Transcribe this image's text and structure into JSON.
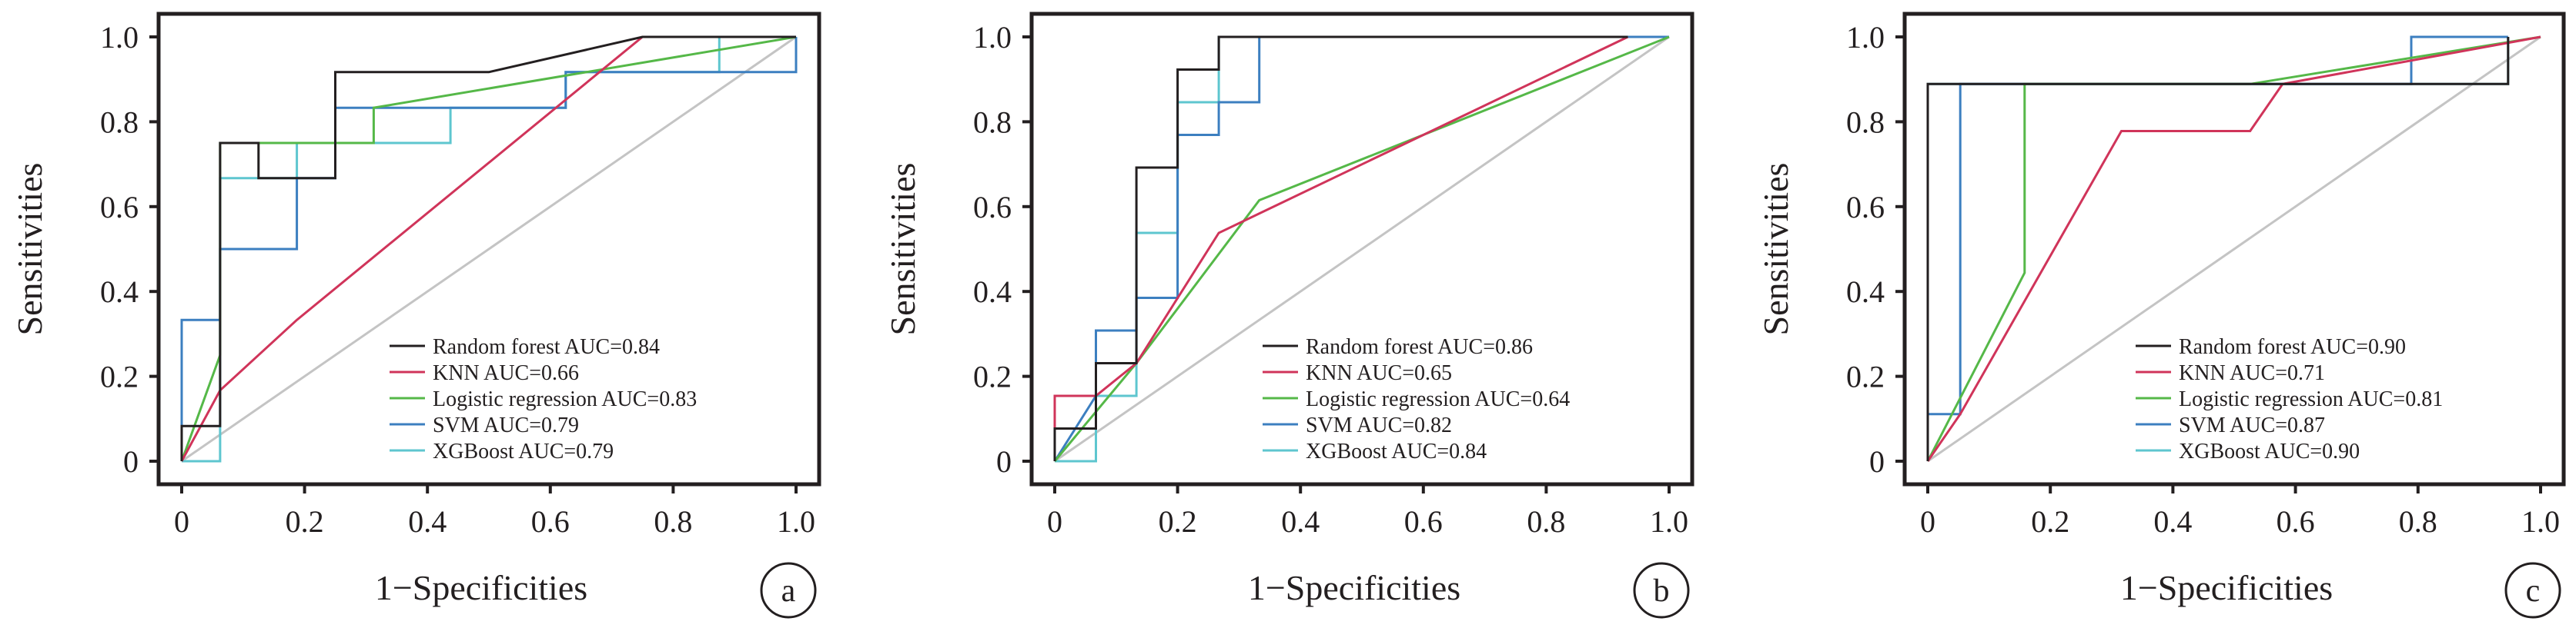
{
  "chart_data": [
    {
      "type": "line",
      "panel_label": "a",
      "xlabel": "1−Specificities",
      "ylabel": "Sensitivities",
      "xlim": [
        0,
        1
      ],
      "ylim": [
        0,
        1
      ],
      "x_ticks": [
        "0",
        "0.2",
        "0.4",
        "0.6",
        "0.8",
        "1.0"
      ],
      "y_ticks": [
        "0",
        "0.2",
        "0.4",
        "0.6",
        "0.8",
        "1.0"
      ],
      "diagonal_reference": true,
      "legend_position": "bottom-right",
      "grid": false,
      "series": [
        {
          "name": "Random forest AUC=0.84",
          "color": "#231f20",
          "x": [
            0,
            0,
            0.0625,
            0.0625,
            0.125,
            0.125,
            0.25,
            0.25,
            0.5,
            0.5,
            0.75,
            0.875,
            1.0
          ],
          "y": [
            0,
            0.083,
            0.083,
            0.75,
            0.75,
            0.667,
            0.667,
            0.917,
            0.917,
            0.917,
            1.0,
            1.0,
            1.0
          ]
        },
        {
          "name": "KNN AUC=0.66",
          "color": "#d0345a",
          "x": [
            0,
            0.0625,
            0.1875,
            0.75,
            0.875,
            1.0
          ],
          "y": [
            0,
            0.167,
            0.333,
            1.0,
            1.0,
            1.0
          ]
        },
        {
          "name": "Logistic regression AUC=0.83",
          "color": "#55b848",
          "x": [
            0,
            0.0625,
            0.0625,
            0.3125,
            0.3125,
            1.0
          ],
          "y": [
            0,
            0.25,
            0.75,
            0.75,
            0.833,
            1.0
          ]
        },
        {
          "name": "SVM AUC=0.79",
          "color": "#3c7fc0",
          "x": [
            0,
            0,
            0.0625,
            0.0625,
            0.1875,
            0.1875,
            0.25,
            0.25,
            0.625,
            0.625,
            0.6875,
            1.0,
            1.0
          ],
          "y": [
            0,
            0.333,
            0.333,
            0.5,
            0.5,
            0.667,
            0.667,
            0.833,
            0.833,
            0.917,
            0.917,
            0.917,
            1.0
          ]
        },
        {
          "name": "XGBoost AUC=0.79",
          "color": "#5ec6cf",
          "x": [
            0,
            0.0625,
            0.0625,
            0.1875,
            0.1875,
            0.4375,
            0.4375,
            0.625,
            0.625,
            0.875,
            0.875,
            1.0
          ],
          "y": [
            0,
            0.0,
            0.667,
            0.667,
            0.75,
            0.75,
            0.833,
            0.833,
            0.917,
            0.917,
            1.0,
            1.0
          ]
        }
      ]
    },
    {
      "type": "line",
      "panel_label": "b",
      "xlabel": "1−Specificities",
      "ylabel": "Sensitivities",
      "xlim": [
        0,
        1
      ],
      "ylim": [
        0,
        1
      ],
      "x_ticks": [
        "0",
        "0.2",
        "0.4",
        "0.6",
        "0.8",
        "1.0"
      ],
      "y_ticks": [
        "0",
        "0.2",
        "0.4",
        "0.6",
        "0.8",
        "1.0"
      ],
      "diagonal_reference": true,
      "legend_position": "bottom-right",
      "grid": false,
      "series": [
        {
          "name": "Random forest AUC=0.86",
          "color": "#231f20",
          "x": [
            0,
            0,
            0.067,
            0.067,
            0.133,
            0.133,
            0.2,
            0.2,
            0.267,
            0.267,
            0.933
          ],
          "y": [
            0,
            0.077,
            0.077,
            0.231,
            0.231,
            0.692,
            0.692,
            0.923,
            0.923,
            1.0,
            1.0
          ]
        },
        {
          "name": "KNN AUC=0.65",
          "color": "#d0345a",
          "x": [
            0,
            0,
            0.067,
            0.133,
            0.267,
            0.933
          ],
          "y": [
            0,
            0.154,
            0.154,
            0.231,
            0.538,
            1.0
          ]
        },
        {
          "name": "Logistic regression AUC=0.64",
          "color": "#55b848",
          "x": [
            0,
            0.133,
            0.333,
            1.0
          ],
          "y": [
            0,
            0.231,
            0.615,
            1.0
          ]
        },
        {
          "name": "SVM AUC=0.82",
          "color": "#3c7fc0",
          "x": [
            0,
            0.067,
            0.067,
            0.133,
            0.133,
            0.2,
            0.2,
            0.267,
            0.267,
            0.333,
            0.333,
            1.0
          ],
          "y": [
            0,
            0.154,
            0.308,
            0.308,
            0.385,
            0.385,
            0.769,
            0.769,
            0.846,
            0.846,
            1.0,
            1.0
          ]
        },
        {
          "name": "XGBoost AUC=0.84",
          "color": "#5ec6cf",
          "x": [
            0,
            0.067,
            0.067,
            0.133,
            0.133,
            0.2,
            0.2,
            0.267,
            0.267,
            1.0
          ],
          "y": [
            0,
            0.0,
            0.154,
            0.154,
            0.538,
            0.538,
            0.846,
            0.846,
            1.0,
            1.0
          ]
        }
      ]
    },
    {
      "type": "line",
      "panel_label": "c",
      "xlabel": "1−Specificities",
      "ylabel": "Sensitivities",
      "xlim": [
        0,
        1
      ],
      "ylim": [
        0,
        1
      ],
      "x_ticks": [
        "0",
        "0.2",
        "0.4",
        "0.6",
        "0.8",
        "1.0"
      ],
      "y_ticks": [
        "0",
        "0.2",
        "0.4",
        "0.6",
        "0.8",
        "1.0"
      ],
      "diagonal_reference": true,
      "legend_position": "bottom-right",
      "grid": false,
      "series": [
        {
          "name": "Random forest AUC=0.90",
          "color": "#231f20",
          "x": [
            0,
            0,
            0.053,
            0.053,
            0.947,
            0.947
          ],
          "y": [
            0,
            0.889,
            0.889,
            0.889,
            0.889,
            1.0
          ]
        },
        {
          "name": "KNN AUC=0.71",
          "color": "#d0345a",
          "x": [
            0,
            0.053,
            0.316,
            0.526,
            0.579,
            1.0
          ],
          "y": [
            0,
            0.111,
            0.778,
            0.778,
            0.889,
            1.0
          ]
        },
        {
          "name": "Logistic regression AUC=0.81",
          "color": "#55b848",
          "x": [
            0,
            0.158,
            0.158,
            0.526,
            1.0
          ],
          "y": [
            0,
            0.444,
            0.889,
            0.889,
            1.0
          ]
        },
        {
          "name": "SVM AUC=0.87",
          "color": "#3c7fc0",
          "x": [
            0,
            0.0,
            0.053,
            0.053,
            0.789,
            0.789,
            0.947,
            0.947
          ],
          "y": [
            0,
            0.111,
            0.111,
            0.889,
            0.889,
            1.0,
            1.0,
            1.0
          ]
        },
        {
          "name": "XGBoost AUC=0.90",
          "color": "#5ec6cf",
          "x": [
            0,
            0,
            0.947,
            0.947
          ],
          "y": [
            0,
            0.889,
            0.889,
            1.0
          ]
        }
      ]
    }
  ]
}
